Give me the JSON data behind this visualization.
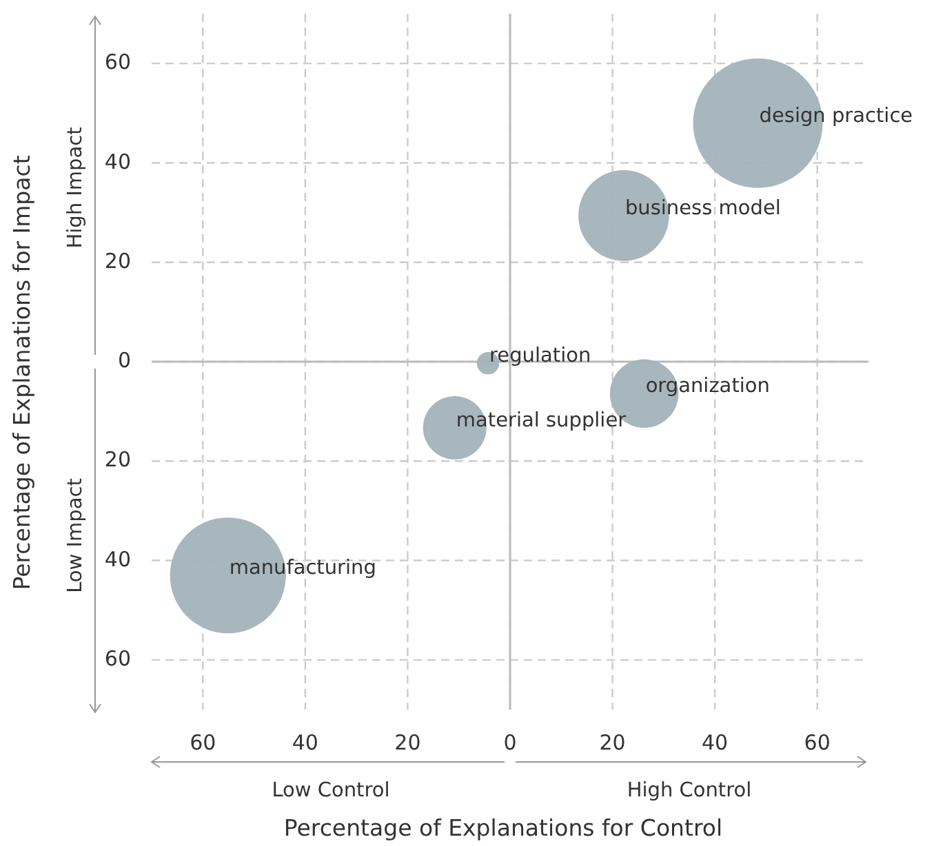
{
  "chart_data": {
    "type": "bubble",
    "xlabel": "Percentage of Explanations for Control",
    "ylabel": "Percentage of Explanations for Impact",
    "x": [
      48.4,
      22.2,
      -4.3,
      26.2,
      -10.8,
      -55.1
    ],
    "values": [
      48,
      29.4,
      -0.3,
      -6.4,
      -13.3,
      -43
    ],
    "sizes": [
      1,
      0.49,
      0.03,
      0.28,
      0.24,
      0.8
    ],
    "color": "#a3b3bb",
    "xlim": [
      -70,
      70
    ],
    "ylim": [
      -70,
      70
    ],
    "xticks": [
      {
        "value": -60,
        "label": "60"
      },
      {
        "value": -40,
        "label": "40"
      },
      {
        "value": -20,
        "label": "20"
      },
      0,
      20,
      40,
      60
    ],
    "yticks": [
      {
        "value": -60,
        "label": "60"
      },
      {
        "value": -40,
        "label": "40"
      },
      {
        "value": -20,
        "label": "20"
      },
      0,
      20,
      40,
      60
    ],
    "grid": true,
    "annotations": [
      "High Impact",
      "Low Impact",
      "Low Control",
      "High Control",
      {
        "text": "design practice",
        "x": 48.4,
        "y": 48
      },
      {
        "text": "business model",
        "x": 22.2,
        "y": 29.4
      },
      {
        "text": "regulation",
        "x": -4.3,
        "y": -0.3
      },
      {
        "text": "organization",
        "x": 26.2,
        "y": -6.4
      },
      {
        "text": "material supplier",
        "x": -10.8,
        "y": -13.3
      },
      {
        "text": "manufacturing",
        "x": -55.1,
        "y": -43
      }
    ]
  }
}
